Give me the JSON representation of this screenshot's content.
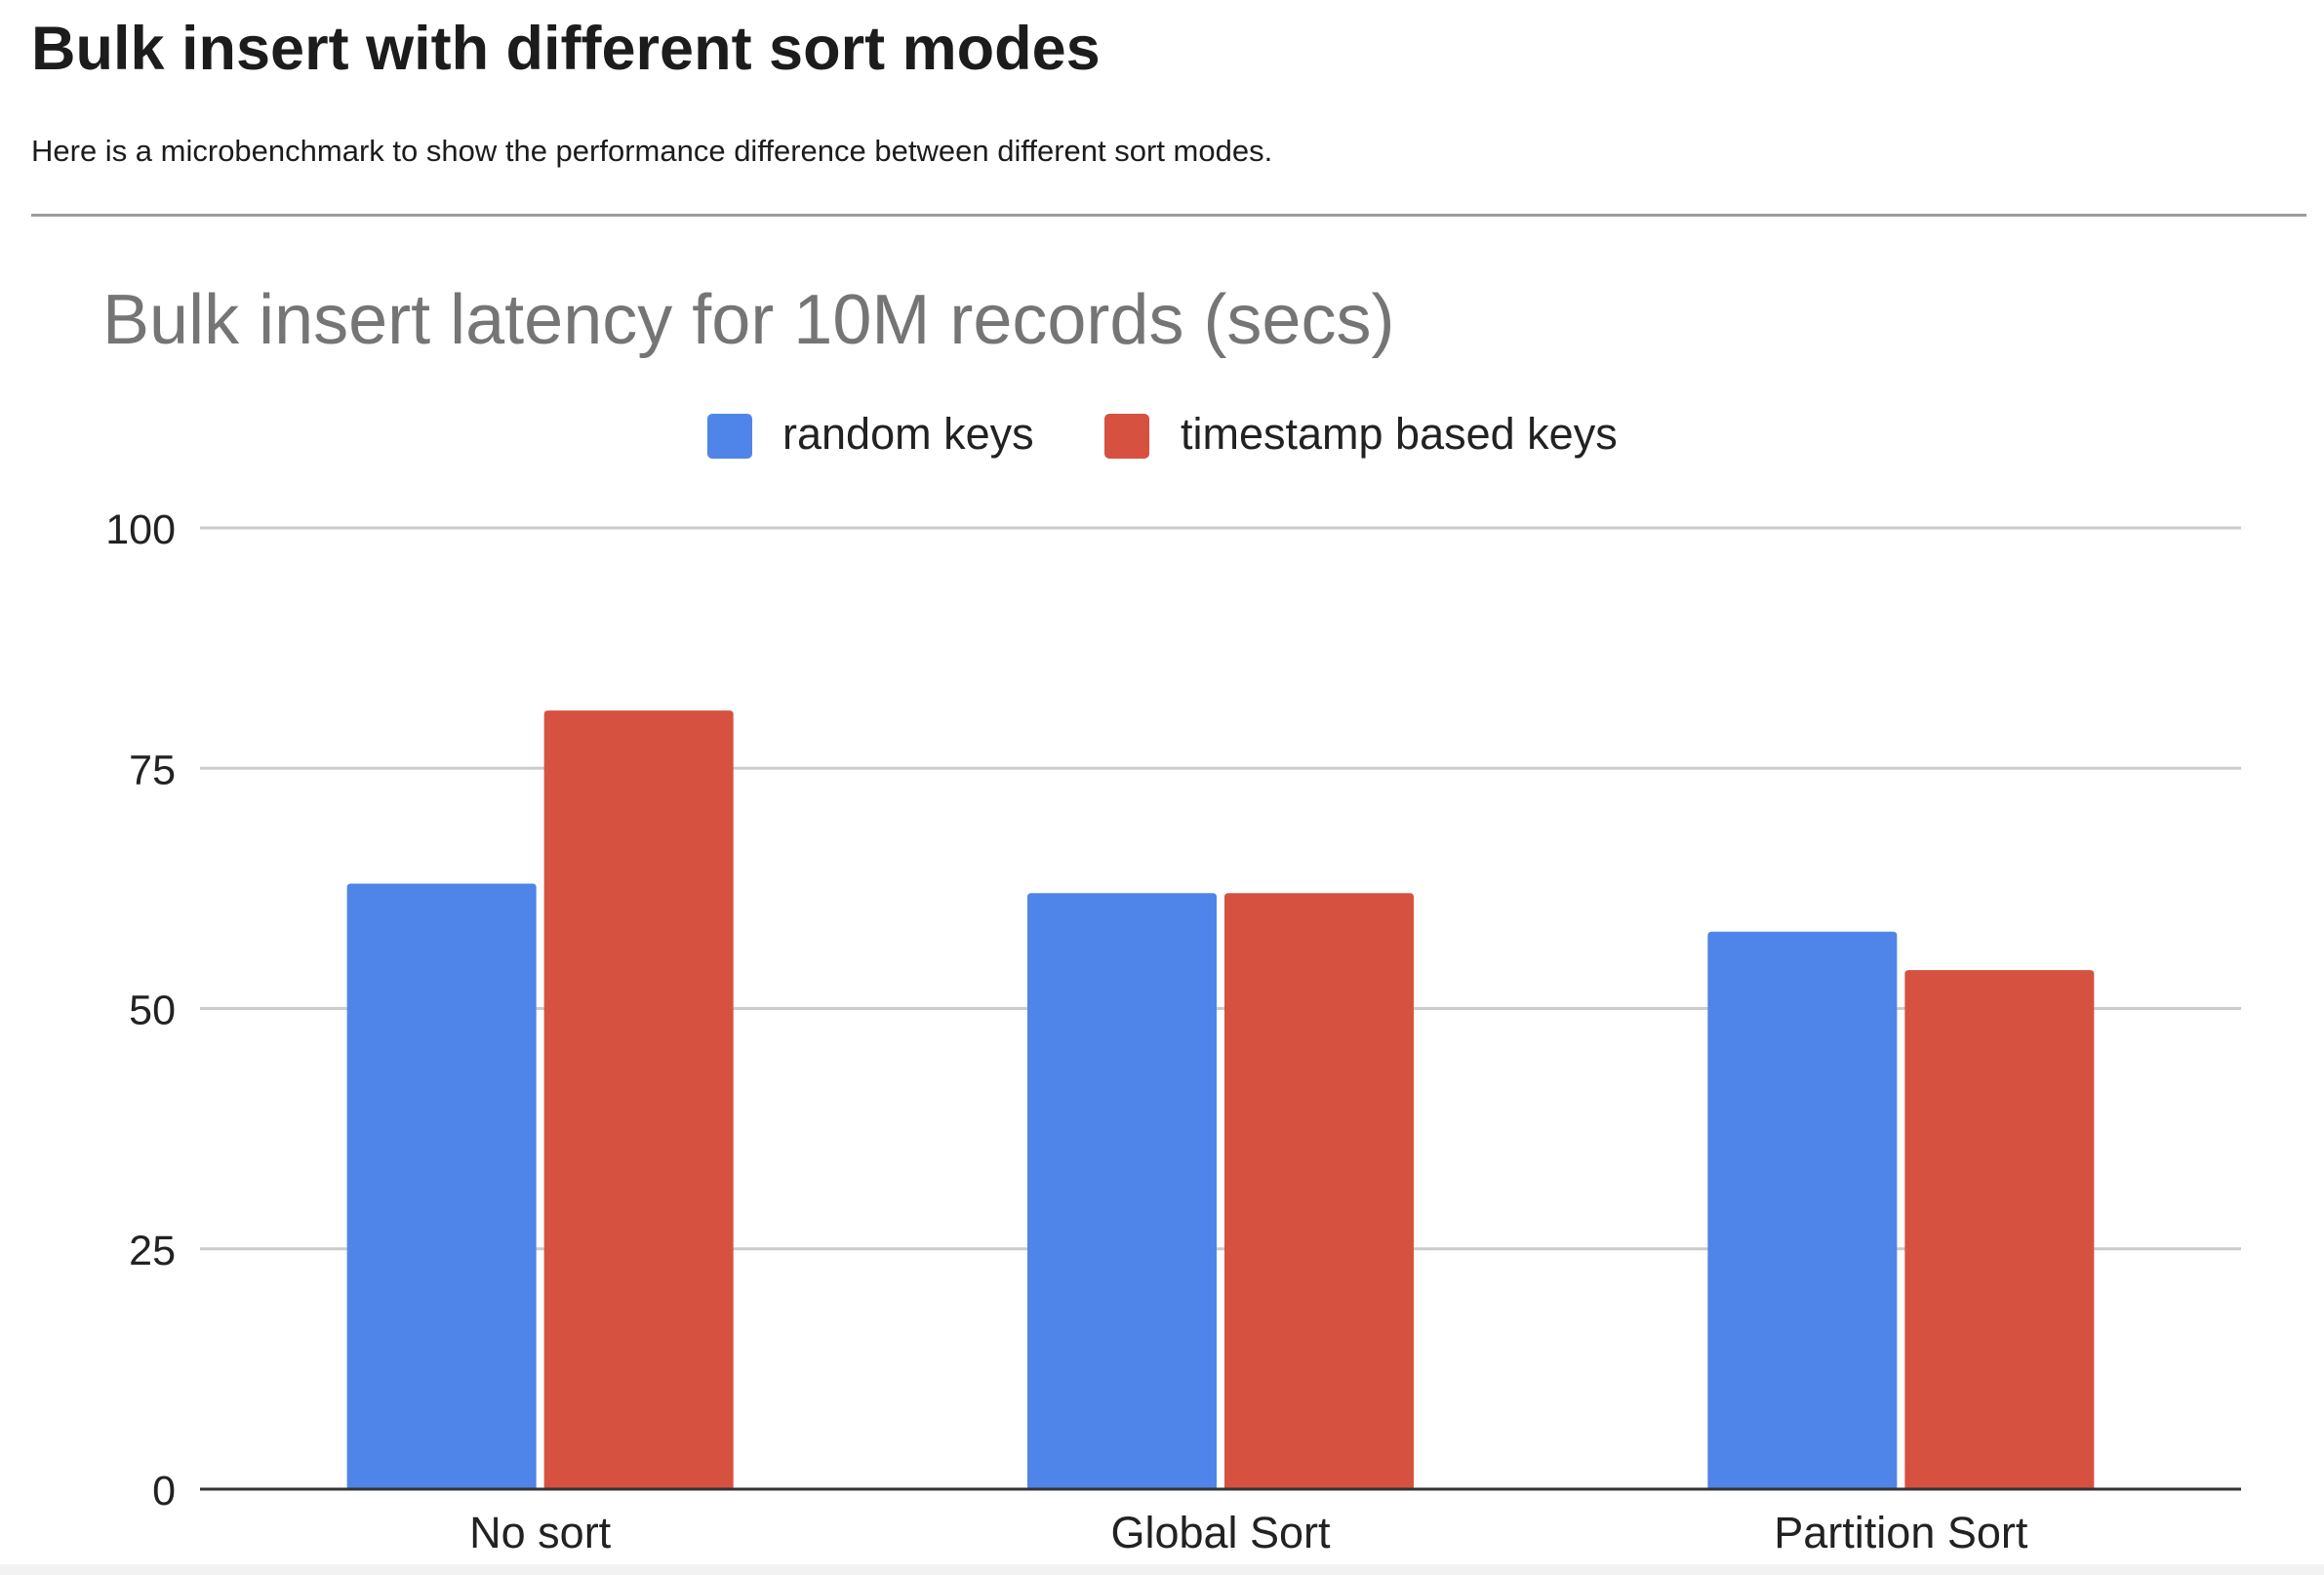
{
  "page": {
    "heading": "Bulk insert with different sort modes",
    "intro": "Here is a microbenchmark to show the performance difference between different sort modes."
  },
  "chart_data": {
    "type": "bar",
    "title": "Bulk insert latency for 10M records (secs)",
    "xlabel": "",
    "ylabel": "",
    "categories": [
      "No sort",
      "Global Sort",
      "Partition Sort"
    ],
    "series": [
      {
        "name": "random keys",
        "color": "#4f85e8",
        "values": [
          63,
          62,
          58
        ]
      },
      {
        "name": "timestamp based keys",
        "color": "#d75140",
        "values": [
          81,
          62,
          54
        ]
      }
    ],
    "ylim": [
      0,
      100
    ],
    "yticks": [
      "0",
      "25",
      "50",
      "75",
      "100"
    ],
    "grid": true,
    "legend_position": "top-center"
  }
}
